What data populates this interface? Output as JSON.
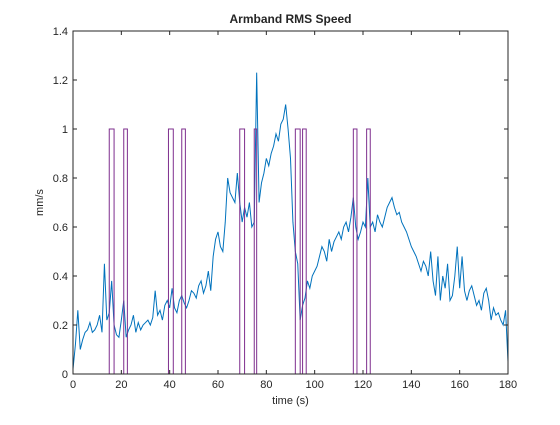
{
  "chart_data": {
    "type": "line",
    "title": "Armband RMS Speed",
    "xlabel": "time (s)",
    "ylabel": "mm/s",
    "xlim": [
      0,
      180
    ],
    "ylim": [
      0,
      1.4
    ],
    "xticks": [
      "0",
      "20",
      "40",
      "60",
      "80",
      "100",
      "120",
      "140",
      "160",
      "180"
    ],
    "yticks": [
      "0",
      "0.2",
      "0.4",
      "0.6",
      "0.8",
      "1",
      "1.2",
      "1.4"
    ],
    "grid": false,
    "colors": {
      "speed": "#0072BD",
      "events": "#7E2F8E",
      "axis": "#262626"
    },
    "series": [
      {
        "role": "speed",
        "x": [
          0,
          1,
          2,
          3,
          4,
          5,
          6,
          7,
          8,
          9,
          10,
          11,
          12,
          13,
          14,
          15,
          16,
          17,
          18,
          19,
          20,
          21,
          22,
          23,
          24,
          25,
          26,
          27,
          28,
          29,
          30,
          31,
          32,
          33,
          34,
          35,
          36,
          37,
          38,
          39,
          40,
          41,
          42,
          43,
          44,
          45,
          46,
          47,
          48,
          49,
          50,
          51,
          52,
          53,
          54,
          55,
          56,
          57,
          58,
          59,
          60,
          61,
          62,
          63,
          64,
          65,
          66,
          67,
          68,
          69,
          70,
          71,
          72,
          73,
          74,
          75,
          76,
          77,
          78,
          79,
          80,
          81,
          82,
          83,
          84,
          85,
          86,
          87,
          88,
          89,
          90,
          91,
          92,
          93,
          94,
          95,
          96,
          97,
          98,
          99,
          100,
          101,
          102,
          103,
          104,
          105,
          106,
          107,
          108,
          109,
          110,
          111,
          112,
          113,
          114,
          115,
          116,
          117,
          118,
          119,
          120,
          121,
          122,
          123,
          124,
          125,
          126,
          127,
          128,
          129,
          130,
          131,
          132,
          133,
          134,
          135,
          136,
          137,
          138,
          139,
          140,
          141,
          142,
          143,
          144,
          145,
          146,
          147,
          148,
          149,
          150,
          151,
          152,
          153,
          154,
          155,
          156,
          157,
          158,
          159,
          160,
          161,
          162,
          163,
          164,
          165,
          166,
          167,
          168,
          169,
          170,
          171,
          172,
          173,
          174,
          175,
          176,
          177,
          178,
          179,
          180
        ],
        "y": [
          0.02,
          0.12,
          0.26,
          0.1,
          0.14,
          0.17,
          0.18,
          0.21,
          0.17,
          0.18,
          0.2,
          0.24,
          0.17,
          0.45,
          0.22,
          0.25,
          0.38,
          0.2,
          0.16,
          0.15,
          0.22,
          0.3,
          0.15,
          0.18,
          0.2,
          0.24,
          0.17,
          0.21,
          0.18,
          0.2,
          0.21,
          0.22,
          0.2,
          0.23,
          0.34,
          0.24,
          0.26,
          0.22,
          0.28,
          0.3,
          0.27,
          0.35,
          0.27,
          0.25,
          0.3,
          0.32,
          0.29,
          0.27,
          0.3,
          0.34,
          0.33,
          0.31,
          0.36,
          0.38,
          0.33,
          0.36,
          0.42,
          0.34,
          0.48,
          0.55,
          0.58,
          0.52,
          0.5,
          0.62,
          0.8,
          0.74,
          0.72,
          0.7,
          0.82,
          0.7,
          0.62,
          0.68,
          0.64,
          0.7,
          0.6,
          0.62,
          1.23,
          0.7,
          0.78,
          0.82,
          0.88,
          0.85,
          0.9,
          0.93,
          0.98,
          0.95,
          1.02,
          1.04,
          1.1,
          1.0,
          0.88,
          0.62,
          0.5,
          0.45,
          0.22,
          0.28,
          0.31,
          0.38,
          0.35,
          0.4,
          0.42,
          0.44,
          0.48,
          0.52,
          0.5,
          0.46,
          0.55,
          0.5,
          0.54,
          0.56,
          0.58,
          0.55,
          0.6,
          0.62,
          0.58,
          0.64,
          0.72,
          0.6,
          0.55,
          0.58,
          0.62,
          0.6,
          0.8,
          0.6,
          0.62,
          0.58,
          0.65,
          0.62,
          0.6,
          0.64,
          0.68,
          0.7,
          0.72,
          0.68,
          0.65,
          0.66,
          0.62,
          0.6,
          0.58,
          0.55,
          0.52,
          0.5,
          0.48,
          0.45,
          0.42,
          0.46,
          0.44,
          0.4,
          0.5,
          0.38,
          0.32,
          0.48,
          0.3,
          0.4,
          0.35,
          0.45,
          0.3,
          0.32,
          0.4,
          0.52,
          0.35,
          0.48,
          0.34,
          0.3,
          0.34,
          0.36,
          0.32,
          0.28,
          0.3,
          0.26,
          0.33,
          0.35,
          0.3,
          0.22,
          0.27,
          0.24,
          0.25,
          0.22,
          0.2,
          0.26,
          0.05
        ]
      },
      {
        "role": "events",
        "intervals": [
          [
            15,
            17
          ],
          [
            21,
            22.5
          ],
          [
            39.5,
            41.5
          ],
          [
            45,
            46.5
          ],
          [
            69,
            71
          ],
          [
            75,
            76
          ],
          [
            92,
            94
          ],
          [
            95,
            96.5
          ],
          [
            116,
            117.5
          ],
          [
            121.5,
            123
          ]
        ],
        "high": 1,
        "low": 0
      }
    ]
  }
}
